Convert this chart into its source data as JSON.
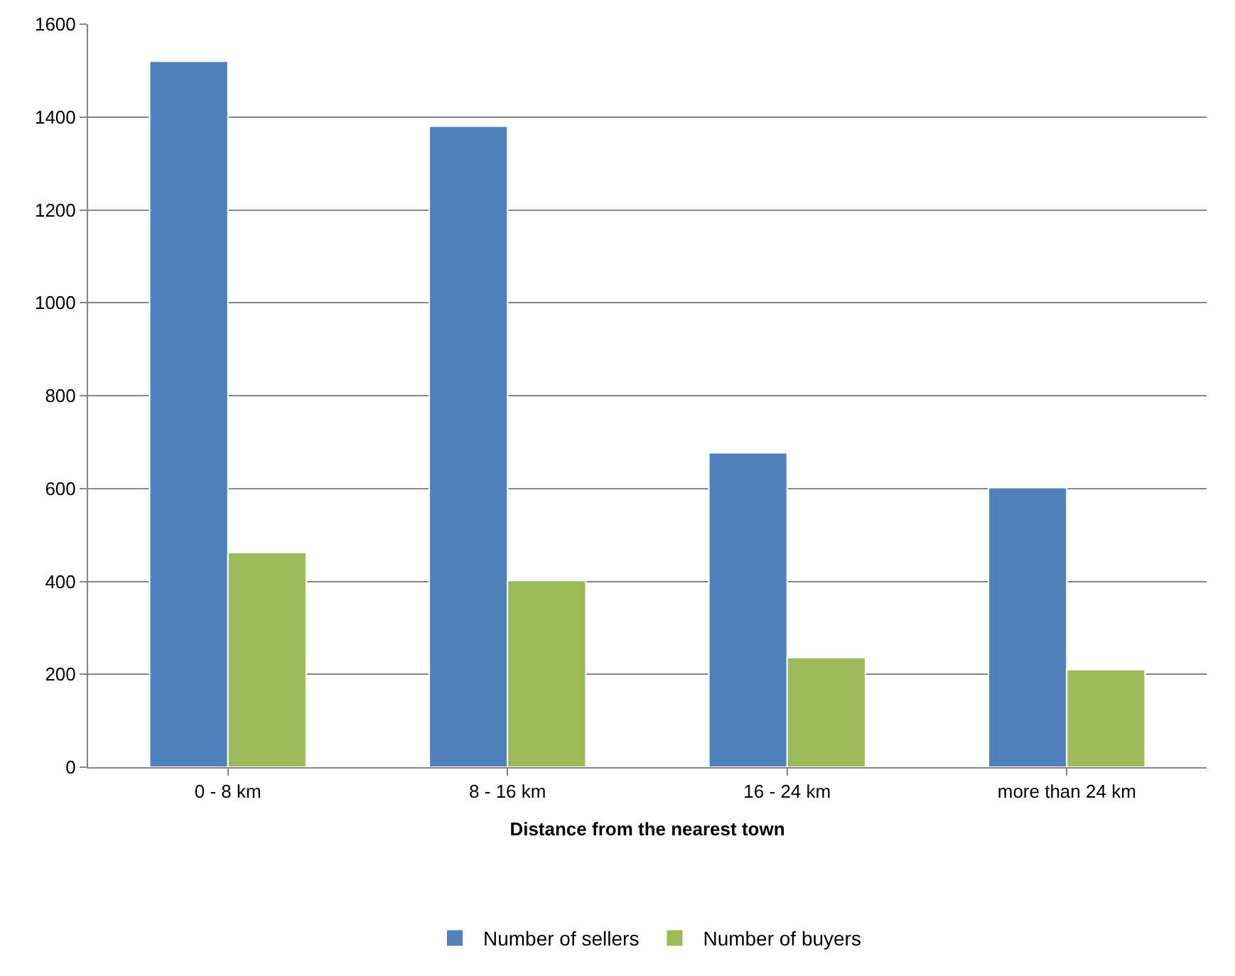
{
  "chart_data": {
    "type": "bar",
    "xlabel": "Distance from the nearest town",
    "categories": [
      "0 - 8 km",
      "8 - 16 km",
      "16 - 24 km",
      "more than 24 km"
    ],
    "series": [
      {
        "name": "Number of sellers",
        "color": "#4f81bd",
        "values": [
          1520,
          1380,
          677,
          602
        ]
      },
      {
        "name": "Number of buyers",
        "color": "#9bbb59",
        "values": [
          462,
          402,
          236,
          210
        ]
      }
    ],
    "ylim": [
      0,
      1600
    ],
    "yticks": [
      0,
      200,
      400,
      600,
      800,
      1000,
      1200,
      1400,
      1600
    ],
    "grid": "y",
    "legend": "bottom"
  }
}
